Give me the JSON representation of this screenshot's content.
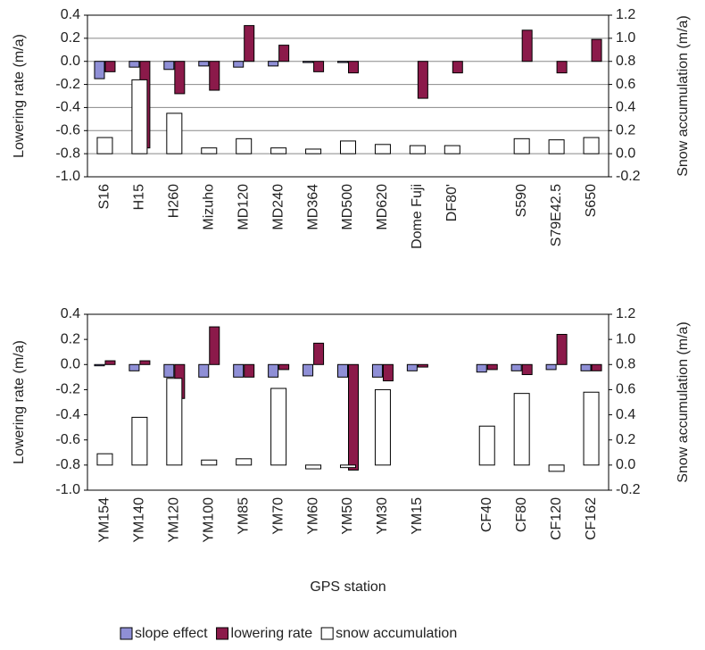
{
  "chart_data": [
    {
      "type": "bar",
      "y_label": "Lowering rate (m/a)",
      "y2_label": "Snow accumulation (m/a)",
      "categories": [
        "S16",
        "H15",
        "H260",
        "Mizuho",
        "MD120",
        "MD240",
        "MD364",
        "MD500",
        "MD620",
        "Dome Fuji",
        "DF80'",
        null,
        "S590",
        "S79E42.5",
        "S650"
      ],
      "series": [
        {
          "color": "#8f8fd6",
          "values": [
            -0.15,
            -0.05,
            -0.07,
            -0.04,
            -0.05,
            -0.04,
            -0.01,
            -0.01,
            null,
            null,
            null,
            null,
            null,
            null,
            null
          ]
        },
        {
          "color": "#8b1a4a",
          "values": [
            -0.09,
            -0.75,
            -0.28,
            -0.25,
            0.31,
            0.14,
            -0.09,
            -0.1,
            null,
            -0.32,
            -0.1,
            null,
            0.27,
            -0.1,
            0.19
          ]
        },
        {
          "color": "#ffffff",
          "axis": "y2",
          "values": [
            0.14,
            0.64,
            0.35,
            0.05,
            0.13,
            0.05,
            0.04,
            0.11,
            0.08,
            0.07,
            0.07,
            null,
            0.13,
            0.12,
            0.14
          ]
        }
      ],
      "ylim": [
        -1.0,
        0.4
      ],
      "yticks": [
        0.4,
        0.2,
        {
          "value": 0,
          "label": "0.0"
        },
        -0.2,
        -0.4,
        -0.6,
        -0.8,
        {
          "value": -1,
          "label": "-1.0"
        }
      ],
      "y2lim": [
        -0.2,
        1.2
      ],
      "y2ticks": [
        1.2,
        {
          "value": 1,
          "label": "1.0"
        },
        0.8,
        0.6,
        0.4,
        0.2,
        {
          "value": 0,
          "label": "0.0"
        },
        -0.2
      ],
      "grid": true
    },
    {
      "type": "bar",
      "y_label": "Lowering rate (m/a)",
      "y2_label": "Snow accumulation (m/a)",
      "x_label": "GPS station",
      "categories": [
        "YM154",
        "YM140",
        "YM120",
        "YM100",
        "YM85",
        "YM70",
        "YM60",
        "YM50",
        "YM30",
        "YM15",
        null,
        "CF40",
        "CF80",
        "CF120",
        "CF162"
      ],
      "series": [
        {
          "name": "slope effect",
          "color": "#8f8fd6",
          "values": [
            -0.01,
            -0.05,
            -0.1,
            -0.1,
            -0.1,
            -0.1,
            -0.09,
            -0.1,
            -0.1,
            -0.05,
            null,
            -0.06,
            -0.05,
            -0.04,
            -0.05
          ]
        },
        {
          "name": "lowering rate",
          "color": "#8b1a4a",
          "values": [
            0.03,
            0.03,
            -0.27,
            0.3,
            -0.1,
            -0.04,
            0.17,
            -0.84,
            -0.13,
            -0.02,
            null,
            -0.04,
            -0.08,
            0.24,
            -0.05
          ]
        },
        {
          "name": "snow accumulation",
          "color": "#ffffff",
          "axis": "y2",
          "values": [
            0.09,
            0.38,
            0.69,
            0.04,
            0.05,
            0.61,
            -0.03,
            -0.02,
            0.6,
            null,
            null,
            0.31,
            0.57,
            -0.05,
            0.58
          ]
        }
      ],
      "ylim": [
        -1.0,
        0.4
      ],
      "yticks": [
        0.4,
        0.2,
        {
          "value": 0,
          "label": "0.0"
        },
        -0.2,
        -0.4,
        -0.6,
        -0.8,
        {
          "value": -1,
          "label": "-1.0"
        }
      ],
      "y2lim": [
        -0.2,
        1.2
      ],
      "y2ticks": [
        1.2,
        {
          "value": 1,
          "label": "1.0"
        },
        0.8,
        0.6,
        0.4,
        0.2,
        {
          "value": 0,
          "label": "0.0"
        },
        -0.2
      ],
      "grid": false
    }
  ]
}
